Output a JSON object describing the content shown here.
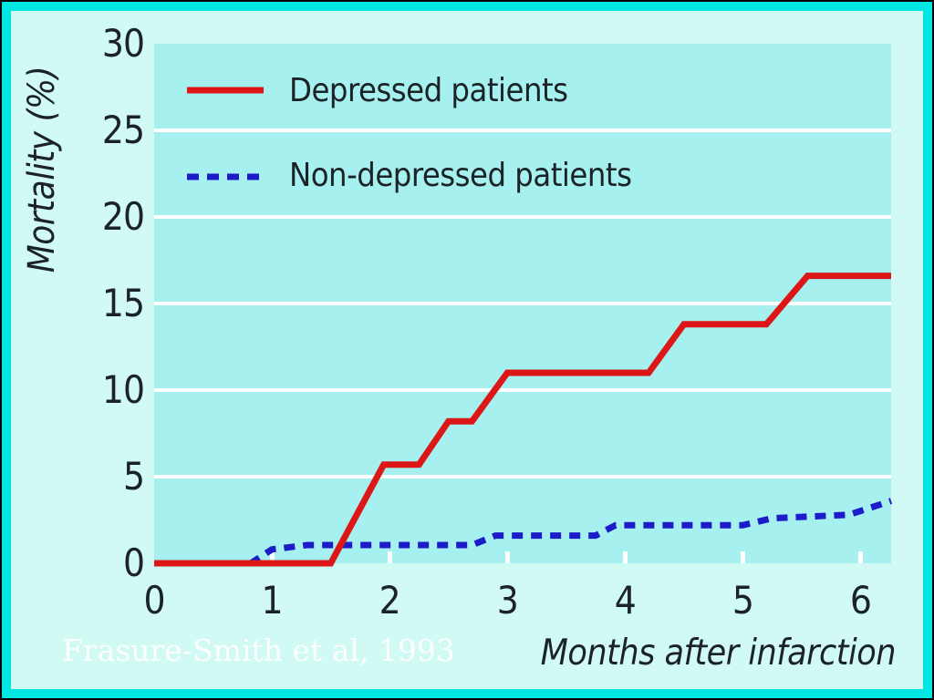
{
  "colors": {
    "frame": "#00e6e3",
    "slide_bg": "#d0faf3",
    "plot_bg": "#a6f1f0",
    "gridline": "#ffffff",
    "depressed": "#dd1717",
    "non_depressed": "#1c1cc8",
    "text": "#1b2327",
    "citation": "#ffffff"
  },
  "citation": "Frasure-Smith et al, 1993",
  "chart_data": {
    "type": "line",
    "title": "",
    "xlabel": "Months after infarction",
    "ylabel": "Mortality (%)",
    "xlim": [
      0,
      6.26
    ],
    "ylim": [
      0,
      30
    ],
    "x_ticks": [
      0,
      1,
      2,
      3,
      4,
      5,
      6
    ],
    "y_ticks": [
      0,
      5,
      10,
      15,
      20,
      25,
      30
    ],
    "grid": "horizontal-white",
    "legend_position": "top-left-inside",
    "series": [
      {
        "name": "Depressed patients",
        "style": "solid",
        "color_key": "depressed",
        "points": [
          [
            0,
            0
          ],
          [
            1.5,
            0
          ],
          [
            1.95,
            5.7
          ],
          [
            2.25,
            5.7
          ],
          [
            2.5,
            8.2
          ],
          [
            2.7,
            8.2
          ],
          [
            3.0,
            11.0
          ],
          [
            4.2,
            11.0
          ],
          [
            4.5,
            13.8
          ],
          [
            5.2,
            13.8
          ],
          [
            5.55,
            16.6
          ],
          [
            6.26,
            16.6
          ]
        ]
      },
      {
        "name": "Non-depressed patients",
        "style": "dashed",
        "color_key": "non_depressed",
        "points": [
          [
            0,
            0
          ],
          [
            0.82,
            0
          ],
          [
            1.0,
            0.8
          ],
          [
            1.3,
            1.05
          ],
          [
            2.7,
            1.05
          ],
          [
            2.9,
            1.6
          ],
          [
            3.75,
            1.6
          ],
          [
            3.92,
            2.2
          ],
          [
            5.0,
            2.2
          ],
          [
            5.25,
            2.6
          ],
          [
            5.9,
            2.8
          ],
          [
            6.26,
            3.6
          ]
        ]
      }
    ]
  }
}
